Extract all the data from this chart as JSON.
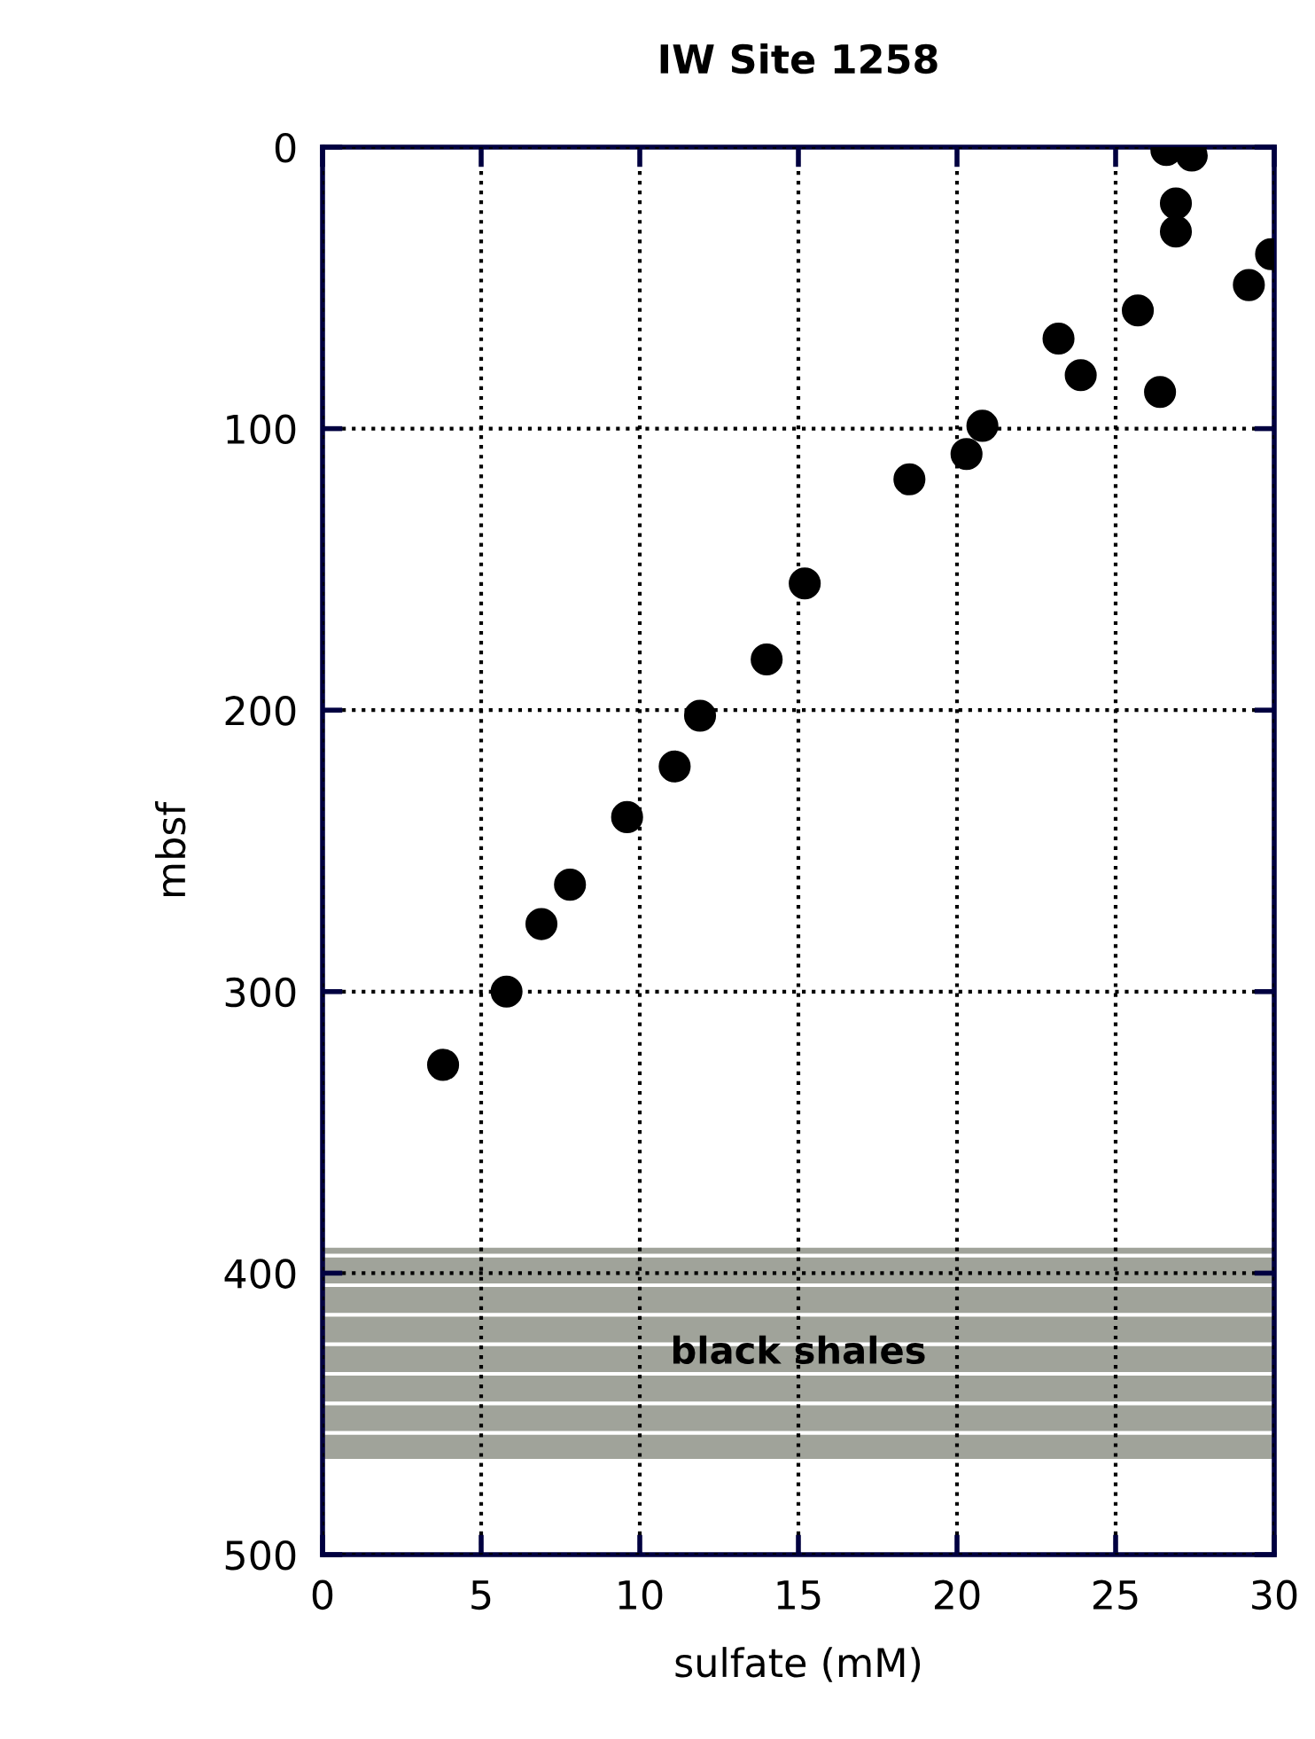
{
  "chart_data": {
    "type": "scatter",
    "title": "IW Site 1258",
    "xlabel": "sulfate (mM)",
    "ylabel": "mbsf",
    "x": [
      26.6,
      27.4,
      26.9,
      26.9,
      29.9,
      29.2,
      25.7,
      23.2,
      23.9,
      26.4,
      20.8,
      20.3,
      18.5,
      15.2,
      14.0,
      11.9,
      11.1,
      9.6,
      7.8,
      6.9,
      5.8,
      3.8
    ],
    "values": [
      1,
      3,
      20,
      30,
      38,
      49,
      58,
      68,
      81,
      87,
      99,
      109,
      118,
      155,
      182,
      202,
      220,
      238,
      262,
      276,
      300,
      326
    ],
    "color": "#000000",
    "marker": "circle",
    "xlim": [
      0,
      30
    ],
    "xticks": [
      0,
      5,
      10,
      15,
      20,
      25,
      30
    ],
    "ylim": [
      500,
      0
    ],
    "yticks": [
      0,
      100,
      200,
      300,
      400,
      500
    ],
    "grid": true,
    "bands": [
      {
        "axis": "y",
        "from": 391,
        "to": 466,
        "label": "black shales",
        "color": "#a0a39a"
      }
    ]
  }
}
